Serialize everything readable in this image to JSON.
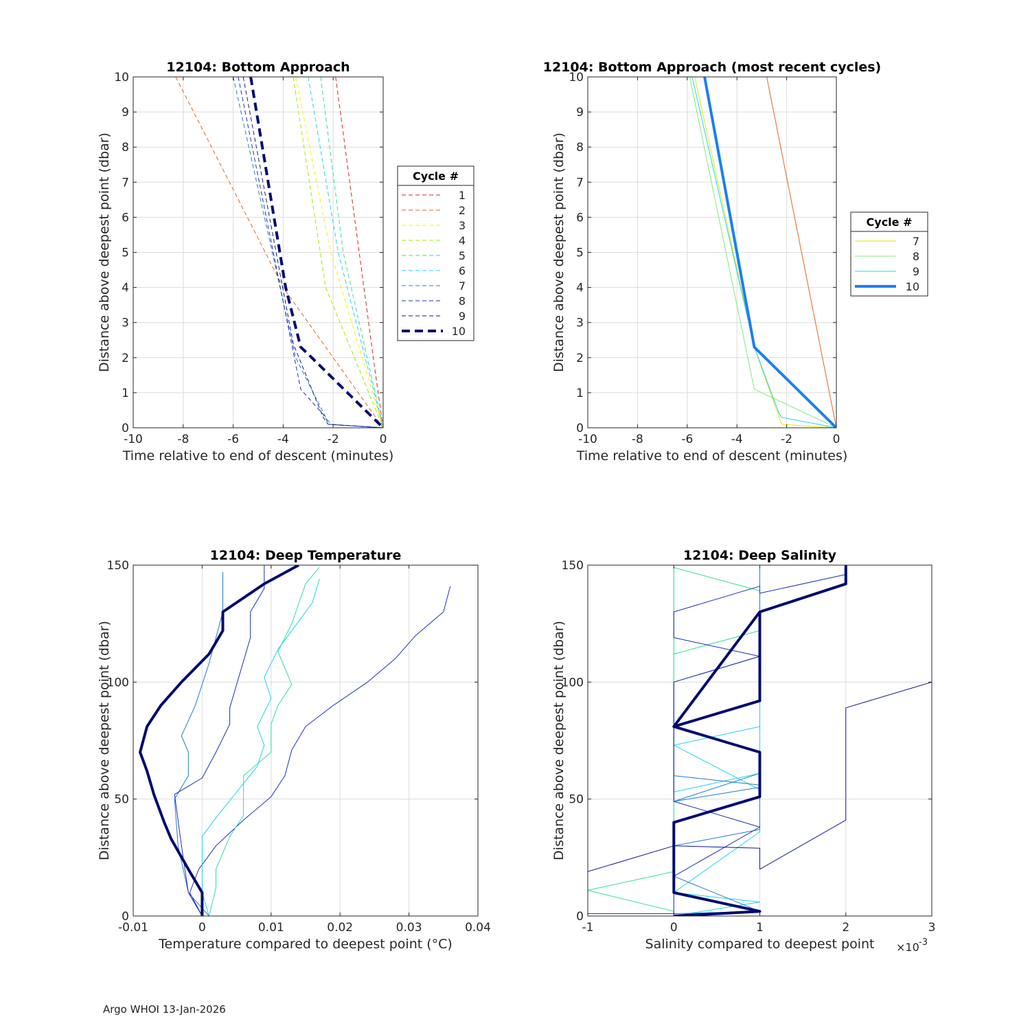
{
  "footer": "Argo WHOI 13-Jan-2026",
  "chart_data": [
    {
      "id": "approach-all",
      "type": "line",
      "title": "12104: Bottom Approach",
      "xlabel": "Time relative to end of descent (minutes)",
      "ylabel": "Distance above deepest point (dbar)",
      "xlim": [
        -10,
        0
      ],
      "ylim": [
        0,
        10
      ],
      "xticks": [
        -10,
        -8,
        -6,
        -4,
        -2,
        0
      ],
      "xtick_labels": [
        "-10",
        "-8",
        "-6",
        "-4",
        "-2",
        "0"
      ],
      "yticks": [
        0,
        1,
        2,
        3,
        4,
        5,
        6,
        7,
        8,
        9,
        10
      ],
      "ytick_labels": [
        "0",
        "1",
        "2",
        "3",
        "4",
        "5",
        "6",
        "7",
        "8",
        "9",
        "10"
      ],
      "grid": true,
      "legend": {
        "title": "Cycle #",
        "placement": "outside-right",
        "labels": [
          "1",
          "2",
          "3",
          "4",
          "5",
          "6",
          "7",
          "8",
          "9",
          "10"
        ]
      },
      "series": [
        {
          "name": "1",
          "color": "#d62020",
          "dash": true,
          "thick": false,
          "x": [
            -1.9,
            -0.3,
            0
          ],
          "y": [
            10,
            1.5,
            0
          ]
        },
        {
          "name": "2",
          "color": "#e0661a",
          "dash": true,
          "thick": false,
          "x": [
            -8.3,
            -4.0,
            0
          ],
          "y": [
            10,
            4,
            0
          ]
        },
        {
          "name": "3",
          "color": "#ffef00",
          "dash": true,
          "thick": false,
          "x": [
            -3.5,
            -2.1,
            0
          ],
          "y": [
            10,
            5,
            0
          ]
        },
        {
          "name": "4",
          "color": "#a6e600",
          "dash": true,
          "thick": false,
          "x": [
            -3.6,
            -2.3,
            0
          ],
          "y": [
            10,
            4,
            0
          ]
        },
        {
          "name": "5",
          "color": "#30dca6",
          "dash": true,
          "thick": false,
          "x": [
            -2.5,
            -1.6,
            0
          ],
          "y": [
            10,
            5,
            0
          ]
        },
        {
          "name": "6",
          "color": "#1ed3ea",
          "dash": true,
          "thick": false,
          "x": [
            -3.0,
            -1.8,
            0
          ],
          "y": [
            10,
            5,
            0
          ]
        },
        {
          "name": "7",
          "color": "#1e7ad6",
          "dash": true,
          "thick": false,
          "x": [
            -6.0,
            -3.5,
            -2.3,
            -2.1,
            0
          ],
          "y": [
            10,
            2,
            0.3,
            0.1,
            0
          ]
        },
        {
          "name": "8",
          "color": "#1c2bbd",
          "dash": true,
          "thick": false,
          "x": [
            -5.8,
            -3.3,
            -2.3,
            -2.2,
            0
          ],
          "y": [
            10,
            1.1,
            0.3,
            0.1,
            0
          ]
        },
        {
          "name": "9",
          "color": "#0d1691",
          "dash": true,
          "thick": false,
          "x": [
            -5.6,
            -3.6,
            -2.4,
            -2.2,
            0
          ],
          "y": [
            10,
            2.4,
            0.3,
            0.1,
            0
          ]
        },
        {
          "name": "10",
          "color": "#000a6e",
          "dash": true,
          "thick": true,
          "x": [
            -5.3,
            -3.9,
            -3.3,
            -3.0,
            0
          ],
          "y": [
            10,
            4,
            2.3,
            2.1,
            0
          ]
        }
      ]
    },
    {
      "id": "approach-recent",
      "type": "line",
      "title": "12104: Bottom Approach (most recent cycles)",
      "xlabel": "Time relative to end of descent (minutes)",
      "ylabel": "Distance above deepest point (dbar)",
      "xlim": [
        -10,
        0
      ],
      "ylim": [
        0,
        10
      ],
      "xticks": [
        -10,
        -8,
        -6,
        -4,
        -2,
        0
      ],
      "xtick_labels": [
        "-10",
        "-8",
        "-6",
        "-4",
        "-2",
        "0"
      ],
      "yticks": [
        0,
        1,
        2,
        3,
        4,
        5,
        6,
        7,
        8,
        9,
        10
      ],
      "ytick_labels": [
        "0",
        "1",
        "2",
        "3",
        "4",
        "5",
        "6",
        "7",
        "8",
        "9",
        "10"
      ],
      "grid": true,
      "legend": {
        "title": "Cycle #",
        "placement": "outside-right",
        "labels": [
          "7",
          "8",
          "9",
          "10"
        ]
      },
      "series": [
        {
          "name": "6",
          "color": "#e0661a",
          "dash": false,
          "thick": false,
          "legend": false,
          "x": [
            -2.8,
            0
          ],
          "y": [
            10,
            0
          ]
        },
        {
          "name": "7",
          "color": "#e6e600",
          "dash": false,
          "thick": false,
          "x": [
            -5.7,
            -3.3,
            -2.3,
            -2.2,
            0
          ],
          "y": [
            10,
            2.3,
            0.3,
            0.1,
            0
          ]
        },
        {
          "name": "8",
          "color": "#7fe87f",
          "dash": false,
          "thick": false,
          "x": [
            -5.9,
            -3.3,
            0
          ],
          "y": [
            10,
            1.1,
            0
          ]
        },
        {
          "name": "9",
          "color": "#1ed3ea",
          "dash": false,
          "thick": false,
          "x": [
            -5.8,
            -3.3,
            -2.3,
            -2.2,
            0
          ],
          "y": [
            10,
            2.3,
            0.4,
            0.3,
            0
          ]
        },
        {
          "name": "10",
          "color": "#1b7ff0",
          "dash": false,
          "thick": true,
          "x": [
            -5.3,
            -3.3,
            0
          ],
          "y": [
            10,
            2.3,
            0
          ]
        }
      ]
    },
    {
      "id": "deep-temperature",
      "type": "line",
      "title": "12104: Deep Temperature",
      "xlabel": "Temperature compared to deepest point (°C)",
      "ylabel": "Distance above deepest point (dbar)",
      "xlim": [
        -0.01,
        0.04
      ],
      "ylim": [
        0,
        150
      ],
      "xticks": [
        -0.01,
        0,
        0.01,
        0.02,
        0.03,
        0.04
      ],
      "xtick_labels": [
        "-0.01",
        "0",
        "0.01",
        "0.02",
        "0.03",
        "0.04"
      ],
      "yticks": [
        0,
        50,
        100,
        150
      ],
      "ytick_labels": [
        "0",
        "50",
        "100",
        "150"
      ],
      "grid": true,
      "series": [
        {
          "name": "a",
          "color": "#1f2fc4",
          "thick": false,
          "x": [
            0,
            -0.0018,
            -0.0005,
            0.002,
            0.006,
            0.01,
            0.012,
            0.013,
            0.015,
            0.019,
            0.024,
            0.028,
            0.031,
            0.035,
            0.036
          ],
          "y": [
            0,
            10,
            20,
            30,
            41,
            51,
            60,
            71,
            81,
            90,
            100,
            110,
            120,
            130,
            141
          ]
        },
        {
          "name": "b",
          "color": "#1e7ad6",
          "thick": false,
          "x": [
            0.001,
            -0.002,
            -0.0035,
            -0.004,
            -0.002,
            -0.002,
            -0.003,
            -0.001,
            0.001,
            0.003,
            0.003
          ],
          "y": [
            0,
            10,
            30,
            50,
            60,
            70,
            77,
            90,
            108,
            130,
            147
          ]
        },
        {
          "name": "c",
          "color": "#1c2bbd",
          "thick": false,
          "x": [
            0,
            -0.002,
            -0.003,
            -0.004,
            0,
            0.002,
            0.004,
            0.004,
            0.007,
            0.007,
            0.009,
            0.009
          ],
          "y": [
            0,
            10,
            30,
            52,
            59,
            70,
            82,
            89,
            119,
            130,
            140,
            150
          ]
        },
        {
          "name": "d",
          "color": "#30dca6",
          "thick": false,
          "x": [
            0.001,
            0.002,
            0.002,
            0.004,
            0.006,
            0.006,
            0.01,
            0.01,
            0.011,
            0.013,
            0.011,
            0.013,
            0.015,
            0.017
          ],
          "y": [
            0,
            12,
            20,
            34,
            43,
            60,
            70,
            82,
            90,
            99,
            113,
            125,
            142,
            149
          ]
        },
        {
          "name": "e",
          "color": "#1ed3ea",
          "thick": false,
          "x": [
            0.001,
            0,
            0,
            0.002,
            0.005,
            0.008,
            0.009,
            0.008,
            0.01,
            0.009,
            0.011,
            0.014,
            0.016,
            0.017
          ],
          "y": [
            0,
            10,
            34,
            42,
            53,
            64,
            73,
            81,
            93,
            102,
            114,
            126,
            134,
            144
          ]
        },
        {
          "name": "10",
          "color": "#000a6e",
          "thick": true,
          "x": [
            0,
            0,
            -0.002,
            -0.0045,
            -0.0055,
            -0.007,
            -0.008,
            -0.009,
            -0.008,
            -0.006,
            -0.003,
            0.001,
            0.003,
            0.003,
            0.009,
            0.014
          ],
          "y": [
            0,
            10,
            20,
            33,
            40,
            52,
            62,
            70,
            81,
            90,
            100,
            112,
            122,
            130,
            142,
            150
          ]
        }
      ]
    },
    {
      "id": "deep-salinity",
      "type": "line",
      "title": "12104: Deep Salinity",
      "xlabel": "Salinity compared to deepest point",
      "ylabel": "Distance above deepest point (dbar)",
      "x_multiplier": "×10",
      "x_exponent": "-3",
      "xlim": [
        -1,
        3
      ],
      "ylim": [
        0,
        150
      ],
      "xticks": [
        -1,
        0,
        1,
        2,
        3
      ],
      "xtick_labels": [
        "-1",
        "0",
        "1",
        "2",
        "3"
      ],
      "yticks": [
        0,
        50,
        100,
        150
      ],
      "ytick_labels": [
        "0",
        "50",
        "100",
        "150"
      ],
      "grid": true,
      "series": [
        {
          "name": "green",
          "color": "#2ee08a",
          "thick": false,
          "x": [
            0,
            0,
            -1,
            0,
            0,
            1,
            1,
            0,
            0,
            1,
            1,
            0
          ],
          "y": [
            0,
            2,
            11,
            19,
            112,
            122,
            139,
            149,
            112,
            122,
            139,
            149
          ]
        },
        {
          "name": "cyan",
          "color": "#1ed3ea",
          "thick": false,
          "x": [
            0,
            1,
            0,
            1,
            1,
            0,
            0,
            1,
            1,
            0,
            0,
            1,
            1
          ],
          "y": [
            0,
            6,
            10,
            36,
            54,
            73,
            53,
            61,
            81,
            73,
            53,
            61,
            150
          ]
        },
        {
          "name": "blue7",
          "color": "#1e7ad6",
          "thick": false,
          "x": [
            0,
            1,
            0,
            0,
            1,
            1,
            0,
            0,
            1,
            1,
            0,
            0,
            1,
            1
          ],
          "y": [
            1,
            2,
            17,
            30,
            37,
            55,
            49,
            60,
            56,
            61,
            49,
            100,
            111,
            150
          ]
        },
        {
          "name": "blue8",
          "color": "#1c2bbd",
          "thick": false,
          "x": [
            -1,
            0,
            0,
            1,
            0,
            0,
            1,
            0,
            0,
            1,
            1,
            2,
            2,
            3
          ],
          "y": [
            1,
            1,
            17,
            38,
            49,
            100,
            111,
            119,
            130,
            141,
            138,
            146,
            150,
            150
          ]
        },
        {
          "name": "blue9",
          "color": "#0d1691",
          "thick": false,
          "x": [
            -1,
            0,
            1,
            1,
            2,
            2,
            3
          ],
          "y": [
            19,
            30,
            29,
            20,
            41,
            89,
            100
          ]
        },
        {
          "name": "10",
          "color": "#000a6e",
          "thick": true,
          "x": [
            0,
            1,
            0,
            0,
            1,
            1,
            0,
            1,
            1,
            0,
            1,
            1,
            2,
            2
          ],
          "y": [
            0,
            2,
            10,
            40,
            51,
            70,
            81,
            92,
            130,
            81,
            92,
            130,
            142,
            150
          ]
        }
      ]
    }
  ]
}
